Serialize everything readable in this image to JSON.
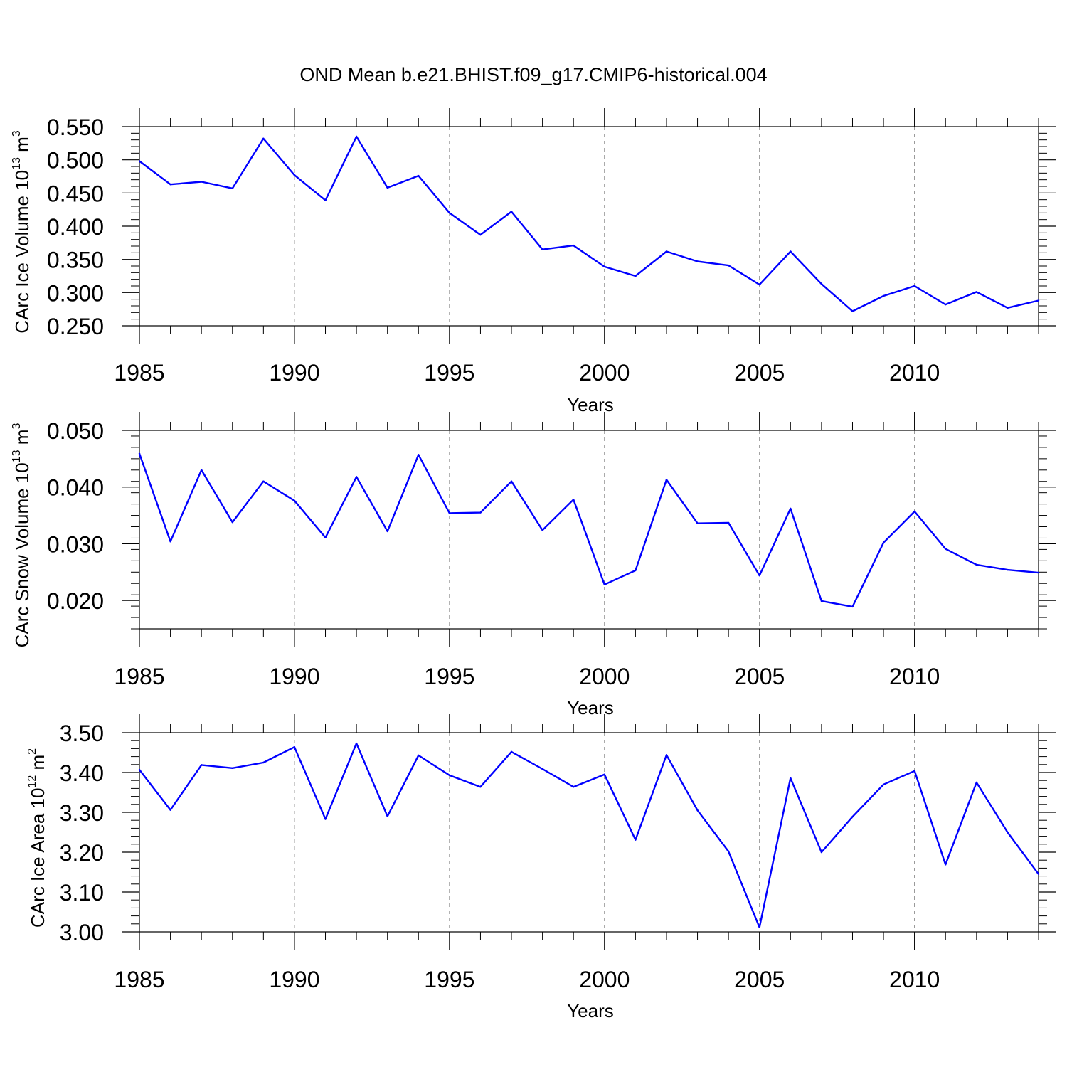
{
  "title": "OND Mean b.e21.BHIST.f09_g17.CMIP6-historical.004",
  "colors": {
    "line": "#0000ff",
    "axis": "#000000",
    "grid": "#888888"
  },
  "chart_data": [
    {
      "type": "line",
      "name": "ice-volume",
      "ylabel": {
        "text": "CArc Ice Volume 10",
        "sup": "13",
        "unit": " m",
        "unit_sup": "3"
      },
      "xlabel": "Years",
      "xlim": [
        1985,
        2014
      ],
      "ylim": [
        0.25,
        0.55
      ],
      "x_ticks": [
        1985,
        1990,
        1995,
        2000,
        2005,
        2010
      ],
      "x_tick_labels": [
        "1985",
        "1990",
        "1995",
        "2000",
        "2005",
        "2010"
      ],
      "y_ticks": [
        0.25,
        0.3,
        0.35,
        0.4,
        0.45,
        0.5,
        0.55
      ],
      "y_tick_labels": [
        "0.250",
        "0.300",
        "0.350",
        "0.400",
        "0.450",
        "0.500",
        "0.550"
      ],
      "grid": "vertical-dashed",
      "x": [
        1985,
        1986,
        1987,
        1988,
        1989,
        1990,
        1991,
        1992,
        1993,
        1994,
        1995,
        1996,
        1997,
        1998,
        1999,
        2000,
        2001,
        2002,
        2003,
        2004,
        2005,
        2006,
        2007,
        2008,
        2009,
        2010,
        2011,
        2012,
        2013,
        2014
      ],
      "values": [
        0.498,
        0.463,
        0.467,
        0.457,
        0.532,
        0.477,
        0.439,
        0.535,
        0.458,
        0.476,
        0.42,
        0.387,
        0.422,
        0.365,
        0.371,
        0.339,
        0.325,
        0.362,
        0.347,
        0.341,
        0.312,
        0.362,
        0.313,
        0.272,
        0.295,
        0.31,
        0.282,
        0.301,
        0.277,
        0.288
      ]
    },
    {
      "type": "line",
      "name": "snow-volume",
      "ylabel": {
        "text": "CArc Snow Volume 10",
        "sup": "13",
        "unit": " m",
        "unit_sup": "3"
      },
      "xlabel": "Years",
      "xlim": [
        1985,
        2014
      ],
      "ylim": [
        0.015,
        0.05
      ],
      "x_ticks": [
        1985,
        1990,
        1995,
        2000,
        2005,
        2010
      ],
      "x_tick_labels": [
        "1985",
        "1990",
        "1995",
        "2000",
        "2005",
        "2010"
      ],
      "y_ticks": [
        0.02,
        0.03,
        0.04,
        0.05
      ],
      "y_tick_labels": [
        "0.020",
        "0.030",
        "0.040",
        "0.050"
      ],
      "grid": "vertical-dashed",
      "x": [
        1985,
        1986,
        1987,
        1988,
        1989,
        1990,
        1991,
        1992,
        1993,
        1994,
        1995,
        1996,
        1997,
        1998,
        1999,
        2000,
        2001,
        2002,
        2003,
        2004,
        2005,
        2006,
        2007,
        2008,
        2009,
        2010,
        2011,
        2012,
        2013,
        2014
      ],
      "values": [
        0.0459,
        0.0304,
        0.043,
        0.0338,
        0.041,
        0.0376,
        0.0311,
        0.0418,
        0.0322,
        0.0457,
        0.0354,
        0.0355,
        0.041,
        0.0324,
        0.0378,
        0.0228,
        0.0253,
        0.0413,
        0.0336,
        0.0337,
        0.0244,
        0.0362,
        0.0199,
        0.0189,
        0.0302,
        0.0357,
        0.0291,
        0.0263,
        0.0254,
        0.0249
      ]
    },
    {
      "type": "line",
      "name": "ice-area",
      "ylabel": {
        "text": "CArc Ice Area 10",
        "sup": "12",
        "unit": " m",
        "unit_sup": "2"
      },
      "xlabel": "Years",
      "xlim": [
        1985,
        2014
      ],
      "ylim": [
        3.0,
        3.5
      ],
      "x_ticks": [
        1985,
        1990,
        1995,
        2000,
        2005,
        2010
      ],
      "x_tick_labels": [
        "1985",
        "1990",
        "1995",
        "2000",
        "2005",
        "2010"
      ],
      "y_ticks": [
        3.0,
        3.1,
        3.2,
        3.3,
        3.4,
        3.5
      ],
      "y_tick_labels": [
        "3.00",
        "3.10",
        "3.20",
        "3.30",
        "3.40",
        "3.50"
      ],
      "grid": "vertical-dashed",
      "x": [
        1985,
        1986,
        1987,
        1988,
        1989,
        1990,
        1991,
        1992,
        1993,
        1994,
        1995,
        1996,
        1997,
        1998,
        1999,
        2000,
        2001,
        2002,
        2003,
        2004,
        2005,
        2006,
        2007,
        2008,
        2009,
        2010,
        2011,
        2012,
        2013,
        2014
      ],
      "values": [
        3.407,
        3.306,
        3.419,
        3.411,
        3.425,
        3.464,
        3.283,
        3.473,
        3.29,
        3.443,
        3.393,
        3.364,
        3.452,
        3.409,
        3.364,
        3.395,
        3.231,
        3.444,
        3.305,
        3.202,
        3.011,
        3.386,
        3.2,
        3.289,
        3.37,
        3.404,
        3.169,
        3.375,
        3.25,
        3.145
      ]
    }
  ]
}
